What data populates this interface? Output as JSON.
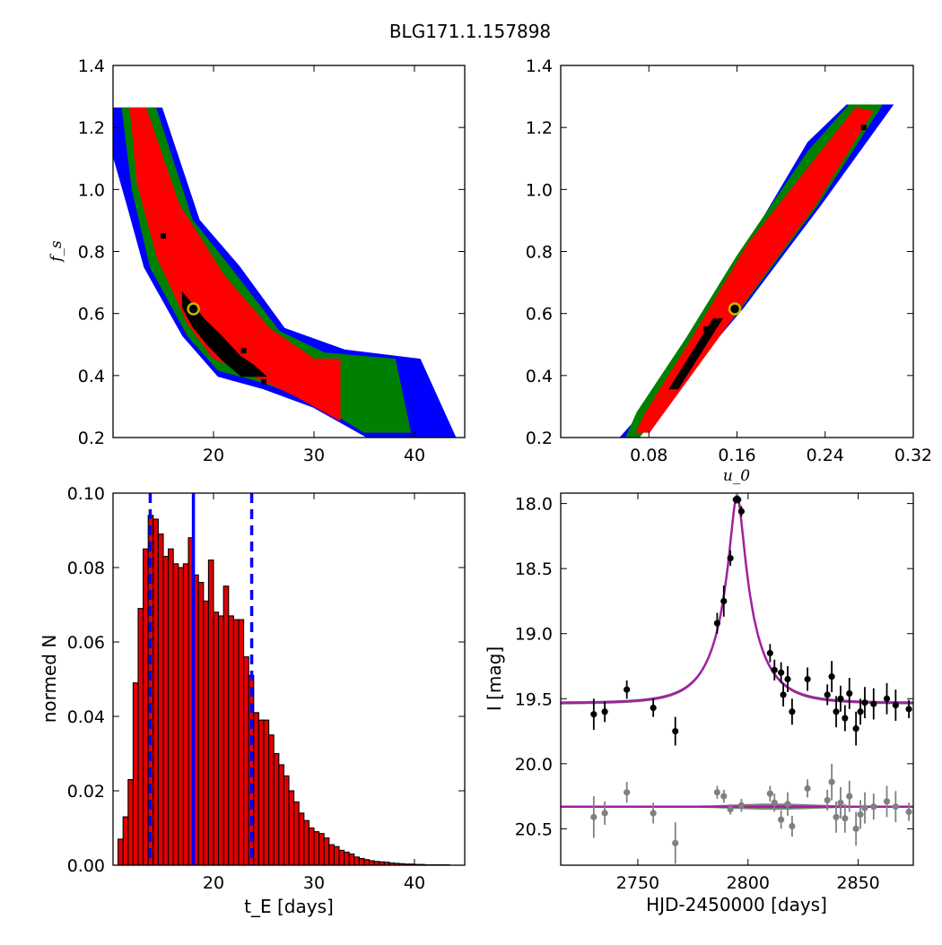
{
  "title": "BLG171.1.157898",
  "colors": {
    "sigma3": "#0000ff",
    "sigma2": "#008000",
    "sigma1": "#ff0000",
    "best_bin": "#000000",
    "best_marker_face": "#000000",
    "best_marker_edge": "#c8b400",
    "hist_fill": "#e00000",
    "hist_edge": "#000000",
    "tE_line": "#0000ff",
    "model": "#a020a0",
    "model_band": "#808080",
    "data": "#000000",
    "residuals": "#808080"
  },
  "chart_data": [
    {
      "id": "fs_vs_tE",
      "type": "heatmap",
      "xlabel": "",
      "ylabel": "f_s",
      "xlim": [
        10,
        45
      ],
      "ylim": [
        0.2,
        1.4
      ],
      "xticks": [
        "20",
        "30",
        "40"
      ],
      "yticks": [
        "0.2",
        "0.4",
        "0.6",
        "0.8",
        "1.0",
        "1.2",
        "1.4"
      ],
      "best_fit": {
        "x": 18.0,
        "y": 0.615
      },
      "contours": {
        "sigma3": [
          [
            10.0,
            1.26
          ],
          [
            14.8,
            1.26
          ],
          [
            18.5,
            0.9
          ],
          [
            22.5,
            0.75
          ],
          [
            27.0,
            0.55
          ],
          [
            33.0,
            0.48
          ],
          [
            40.5,
            0.45
          ],
          [
            44.0,
            0.2
          ],
          [
            35.5,
            0.2
          ],
          [
            30.0,
            0.3
          ],
          [
            25.0,
            0.36
          ],
          [
            20.5,
            0.4
          ],
          [
            17.0,
            0.53
          ],
          [
            13.2,
            0.75
          ],
          [
            11.5,
            0.95
          ],
          [
            10.0,
            1.12
          ]
        ],
        "sigma2": [
          [
            11.0,
            1.26
          ],
          [
            14.2,
            1.26
          ],
          [
            17.8,
            0.9
          ],
          [
            22.0,
            0.73
          ],
          [
            26.5,
            0.54
          ],
          [
            31.0,
            0.47
          ],
          [
            38.0,
            0.45
          ],
          [
            39.5,
            0.22
          ],
          [
            35.0,
            0.22
          ],
          [
            30.0,
            0.32
          ],
          [
            25.0,
            0.38
          ],
          [
            20.5,
            0.42
          ],
          [
            17.5,
            0.53
          ],
          [
            13.8,
            0.75
          ],
          [
            12.0,
            1.0
          ]
        ],
        "sigma1": [
          [
            11.8,
            1.26
          ],
          [
            13.2,
            1.26
          ],
          [
            16.5,
            0.95
          ],
          [
            21.0,
            0.72
          ],
          [
            25.5,
            0.55
          ],
          [
            30.0,
            0.45
          ],
          [
            32.5,
            0.45
          ],
          [
            32.5,
            0.26
          ],
          [
            28.0,
            0.34
          ],
          [
            24.0,
            0.4
          ],
          [
            20.0,
            0.46
          ],
          [
            17.5,
            0.57
          ],
          [
            14.5,
            0.78
          ],
          [
            12.5,
            1.02
          ]
        ],
        "best": [
          [
            17.0,
            0.66
          ],
          [
            19.0,
            0.58
          ],
          [
            20.6,
            0.53
          ],
          [
            22.6,
            0.46
          ],
          [
            24.0,
            0.43
          ],
          [
            25.0,
            0.4
          ],
          [
            22.8,
            0.4
          ],
          [
            21.0,
            0.45
          ],
          [
            19.5,
            0.5
          ],
          [
            18.0,
            0.56
          ],
          [
            17.0,
            0.62
          ]
        ]
      },
      "outliers": [
        [
          15.0,
          0.85
        ],
        [
          23.0,
          0.48
        ],
        [
          25.0,
          0.38
        ]
      ]
    },
    {
      "id": "fs_vs_u0",
      "type": "heatmap",
      "xlabel": "u_0",
      "ylabel": "",
      "xlim": [
        0.0,
        0.32
      ],
      "ylim": [
        0.2,
        1.4
      ],
      "xticks": [
        "0.08",
        "0.16",
        "0.24",
        "0.32"
      ],
      "yticks": [
        "0.2",
        "0.4",
        "0.6",
        "0.8",
        "1.0",
        "1.2",
        "1.4"
      ],
      "best_fit": {
        "x": 0.158,
        "y": 0.615
      },
      "contours": {
        "sigma3": [
          [
            0.055,
            0.2
          ],
          [
            0.065,
            0.2
          ],
          [
            0.165,
            0.62
          ],
          [
            0.235,
            0.95
          ],
          [
            0.3,
            1.27
          ],
          [
            0.26,
            1.27
          ],
          [
            0.225,
            1.15
          ],
          [
            0.175,
            0.85
          ],
          [
            0.125,
            0.55
          ],
          [
            0.075,
            0.28
          ]
        ],
        "sigma2": [
          [
            0.06,
            0.2
          ],
          [
            0.07,
            0.2
          ],
          [
            0.163,
            0.62
          ],
          [
            0.232,
            0.95
          ],
          [
            0.29,
            1.27
          ],
          [
            0.262,
            1.27
          ],
          [
            0.225,
            1.12
          ],
          [
            0.16,
            0.78
          ],
          [
            0.115,
            0.52
          ],
          [
            0.07,
            0.28
          ]
        ],
        "sigma1": [
          [
            0.07,
            0.22
          ],
          [
            0.08,
            0.22
          ],
          [
            0.162,
            0.62
          ],
          [
            0.23,
            0.95
          ],
          [
            0.282,
            1.25
          ],
          [
            0.268,
            1.26
          ],
          [
            0.228,
            1.08
          ],
          [
            0.17,
            0.82
          ],
          [
            0.12,
            0.52
          ],
          [
            0.078,
            0.28
          ]
        ],
        "best": [
          [
            0.1,
            0.36
          ],
          [
            0.106,
            0.36
          ],
          [
            0.145,
            0.58
          ],
          [
            0.139,
            0.58
          ]
        ]
      },
      "outliers": [
        [
          0.132,
          0.55
        ],
        [
          0.107,
          0.38
        ],
        [
          0.275,
          1.2
        ]
      ]
    },
    {
      "id": "tE_hist",
      "type": "bar",
      "xlabel": "t_E [days]",
      "ylabel": "normed N",
      "xlim": [
        10,
        45
      ],
      "ylim": [
        0.0,
        0.1
      ],
      "xticks": [
        "20",
        "30",
        "40"
      ],
      "yticks": [
        "0.00",
        "0.02",
        "0.04",
        "0.06",
        "0.08",
        "0.10"
      ],
      "bin_start": 10.5,
      "bin_width": 0.5,
      "values": [
        0.007,
        0.013,
        0.023,
        0.049,
        0.069,
        0.085,
        0.094,
        0.093,
        0.089,
        0.083,
        0.085,
        0.081,
        0.08,
        0.081,
        0.088,
        0.078,
        0.076,
        0.071,
        0.082,
        0.068,
        0.067,
        0.075,
        0.067,
        0.066,
        0.066,
        0.056,
        0.051,
        0.041,
        0.039,
        0.039,
        0.035,
        0.03,
        0.027,
        0.024,
        0.02,
        0.017,
        0.014,
        0.012,
        0.01,
        0.009,
        0.0085,
        0.0073,
        0.0055,
        0.005,
        0.004,
        0.0035,
        0.003,
        0.0022,
        0.0018,
        0.0015,
        0.0012,
        0.001,
        0.0009,
        0.0008,
        0.0006,
        0.0005,
        0.0004,
        0.0003,
        0.0003,
        0.0002,
        0.0002,
        0.0001,
        0.0001,
        0.0001,
        0.0001,
        0.0001
      ],
      "median": 18.0,
      "interval": [
        13.7,
        23.8
      ]
    },
    {
      "id": "lightcurve",
      "type": "line",
      "xlabel": "HJD-2450000 [days]",
      "ylabel": "I [mag]",
      "xlim": [
        2715,
        2875
      ],
      "ylim": [
        20.78,
        17.92
      ],
      "xticks": [
        "2750",
        "2800",
        "2850"
      ],
      "yticks": [
        "18.0",
        "18.5",
        "19.0",
        "19.5",
        "20.0",
        "20.5"
      ],
      "model": {
        "t0": 2795.0,
        "tE": 18.0,
        "u0": 0.158,
        "fs": 0.615,
        "baseline_mag": 19.535
      },
      "residual_offset": 20.33,
      "data": [
        [
          2730,
          19.62,
          0.12
        ],
        [
          2735,
          19.6,
          0.08
        ],
        [
          2745,
          19.43,
          0.07
        ],
        [
          2757,
          19.57,
          0.07
        ],
        [
          2767,
          19.75,
          0.11
        ],
        [
          2786,
          18.92,
          0.08
        ],
        [
          2789,
          18.75,
          0.12
        ],
        [
          2792,
          18.42,
          0.06
        ],
        [
          2794.5,
          17.97,
          0.03
        ],
        [
          2795.5,
          17.97,
          0.03
        ],
        [
          2797,
          18.06,
          0.04
        ],
        [
          2810,
          19.15,
          0.07
        ],
        [
          2812,
          19.28,
          0.08
        ],
        [
          2815,
          19.3,
          0.08
        ],
        [
          2816,
          19.47,
          0.09
        ],
        [
          2818,
          19.35,
          0.1
        ],
        [
          2820,
          19.6,
          0.1
        ],
        [
          2827,
          19.35,
          0.09
        ],
        [
          2836,
          19.47,
          0.08
        ],
        [
          2838,
          19.33,
          0.12
        ],
        [
          2840,
          19.6,
          0.12
        ],
        [
          2842,
          19.5,
          0.1
        ],
        [
          2844,
          19.65,
          0.1
        ],
        [
          2846,
          19.46,
          0.12
        ],
        [
          2849,
          19.73,
          0.13
        ],
        [
          2851,
          19.6,
          0.1
        ],
        [
          2853,
          19.53,
          0.12
        ],
        [
          2857,
          19.54,
          0.12
        ],
        [
          2863,
          19.5,
          0.12
        ],
        [
          2867,
          19.55,
          0.12
        ],
        [
          2873,
          19.58,
          0.07
        ]
      ],
      "residuals": [
        [
          2730,
          20.41,
          0.16
        ],
        [
          2735,
          20.38,
          0.09
        ],
        [
          2745,
          20.22,
          0.08
        ],
        [
          2757,
          20.38,
          0.08
        ],
        [
          2767,
          20.61,
          0.16
        ],
        [
          2786,
          20.22,
          0.05
        ],
        [
          2789,
          20.25,
          0.05
        ],
        [
          2792,
          20.35,
          0.04
        ],
        [
          2797,
          20.32,
          0.05
        ],
        [
          2810,
          20.23,
          0.06
        ],
        [
          2812,
          20.3,
          0.07
        ],
        [
          2815,
          20.43,
          0.07
        ],
        [
          2818,
          20.31,
          0.09
        ],
        [
          2820,
          20.48,
          0.08
        ],
        [
          2827,
          20.19,
          0.07
        ],
        [
          2836,
          20.28,
          0.08
        ],
        [
          2838,
          20.14,
          0.14
        ],
        [
          2840,
          20.41,
          0.12
        ],
        [
          2842,
          20.3,
          0.12
        ],
        [
          2844,
          20.42,
          0.11
        ],
        [
          2846,
          20.25,
          0.12
        ],
        [
          2849,
          20.5,
          0.13
        ],
        [
          2851,
          20.39,
          0.11
        ],
        [
          2853,
          20.34,
          0.12
        ],
        [
          2857,
          20.33,
          0.1
        ],
        [
          2863,
          20.29,
          0.12
        ],
        [
          2867,
          20.33,
          0.12
        ],
        [
          2873,
          20.37,
          0.07
        ]
      ]
    }
  ]
}
